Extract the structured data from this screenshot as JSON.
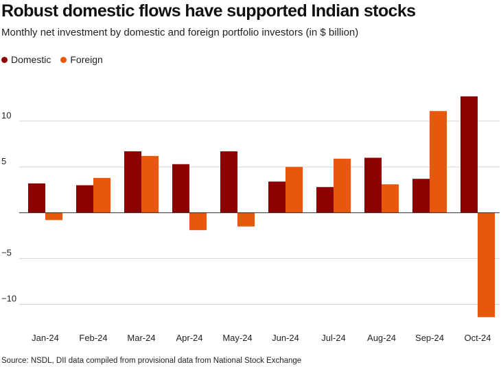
{
  "header": {
    "title": "Robust domestic flows have supported Indian stocks",
    "subtitle": "Monthly net investment by domestic and foreign portfolio investors (in $ billion)"
  },
  "legend": {
    "items": [
      {
        "label": "Domestic",
        "color": "#8b0000"
      },
      {
        "label": "Foreign",
        "color": "#e8580c"
      }
    ]
  },
  "footer": {
    "source": "Source: NSDL, DII data compiled from provisional data from National Stock Exchange"
  },
  "chart_data": {
    "type": "bar",
    "categories": [
      "Jan-24",
      "Feb-24",
      "Mar-24",
      "Apr-24",
      "May-24",
      "Jun-24",
      "Jul-24",
      "Aug-24",
      "Sep-24",
      "Oct-24"
    ],
    "series": [
      {
        "name": "Domestic",
        "color": "#8b0000",
        "values": [
          3.2,
          3.0,
          6.7,
          5.3,
          6.7,
          3.4,
          2.8,
          6.0,
          3.7,
          12.7
        ]
      },
      {
        "name": "Foreign",
        "color": "#e8580c",
        "values": [
          -0.8,
          3.8,
          6.2,
          -1.9,
          -1.5,
          5.0,
          5.9,
          3.1,
          11.1,
          -11.4
        ]
      }
    ],
    "yticks": [
      -10,
      -5,
      0,
      5,
      10
    ],
    "ytick_labels": [
      "−10",
      "−5",
      "",
      "5",
      "10"
    ],
    "ylim": [
      -12.8,
      15.0
    ],
    "xlabel": "",
    "ylabel": "",
    "grid": true,
    "legend_position": "top-left"
  }
}
